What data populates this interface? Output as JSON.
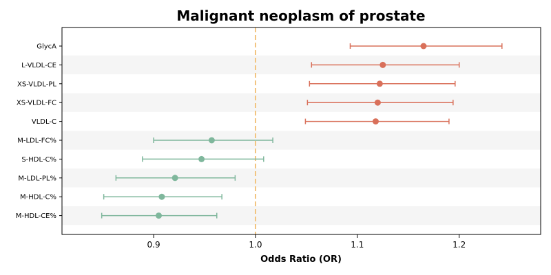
{
  "chart_data": {
    "type": "forest",
    "title": "Malignant neoplasm of prostate",
    "xlabel": "Odds Ratio (OR)",
    "ylabel": "",
    "xlim": [
      0.81,
      1.28
    ],
    "xticks": [
      0.9,
      1.0,
      1.1,
      1.2
    ],
    "xtick_labels": [
      "0.9",
      "1.0",
      "1.1",
      "1.2"
    ],
    "reference_line": 1.0,
    "grid": false,
    "alternating_row_shading": true,
    "colors": {
      "positive": "#d9705a",
      "negative": "#7fb79c",
      "reference": "#f2c47f",
      "shade": "#f5f5f5"
    },
    "rows": [
      {
        "label": "GlycA",
        "or": 1.165,
        "lower": 1.093,
        "upper": 1.242
      },
      {
        "label": "L-VLDL-CE",
        "or": 1.125,
        "lower": 1.055,
        "upper": 1.2
      },
      {
        "label": "XS-VLDL-PL",
        "or": 1.122,
        "lower": 1.053,
        "upper": 1.196
      },
      {
        "label": "XS-VLDL-FC",
        "or": 1.12,
        "lower": 1.051,
        "upper": 1.194
      },
      {
        "label": "VLDL-C",
        "or": 1.118,
        "lower": 1.049,
        "upper": 1.19
      },
      {
        "label": "M-LDL-FC%",
        "or": 0.957,
        "lower": 0.9,
        "upper": 1.017
      },
      {
        "label": "S-HDL-C%",
        "or": 0.947,
        "lower": 0.889,
        "upper": 1.008
      },
      {
        "label": "M-LDL-PL%",
        "or": 0.921,
        "lower": 0.863,
        "upper": 0.98
      },
      {
        "label": "M-HDL-C%",
        "or": 0.908,
        "lower": 0.851,
        "upper": 0.967
      },
      {
        "label": "M-HDL-CE%",
        "or": 0.905,
        "lower": 0.849,
        "upper": 0.962
      }
    ]
  }
}
